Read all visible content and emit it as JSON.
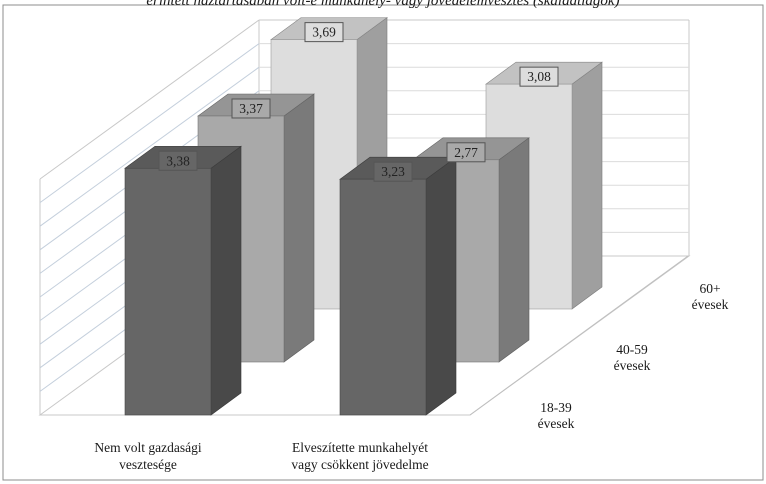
{
  "chart_data": {
    "type": "bar",
    "title": "érintett háztartásában volt-e munkahely- vagy jövedelemvesztés (skálaátlagok)",
    "xlabel": "",
    "ylabel": "",
    "categories": [
      [
        "Nem volt gazdasági",
        "vesztesége"
      ],
      [
        "Elveszítette munkahelyét",
        "vagy csökkent jövedelme"
      ]
    ],
    "series": [
      {
        "name": "18-39 évesek",
        "label_lines": [
          "18-39",
          "évesek"
        ],
        "values": [
          3.38,
          3.23
        ],
        "labels": [
          "3,38",
          "3,23"
        ],
        "color": "#666666"
      },
      {
        "name": "40-59 évesek",
        "label_lines": [
          "40-59",
          "évesek"
        ],
        "values": [
          3.37,
          2.77
        ],
        "labels": [
          "3,37",
          "2,77"
        ],
        "color": "#a9a9a9"
      },
      {
        "name": "60+ évesek",
        "label_lines": [
          "60+",
          "évesek"
        ],
        "values": [
          3.69,
          3.08
        ],
        "labels": [
          "3,69",
          "3,08"
        ],
        "color": "#dddddd"
      }
    ],
    "grid": true,
    "legend": "depth axis (right side)",
    "chart_style": "3d-column"
  }
}
